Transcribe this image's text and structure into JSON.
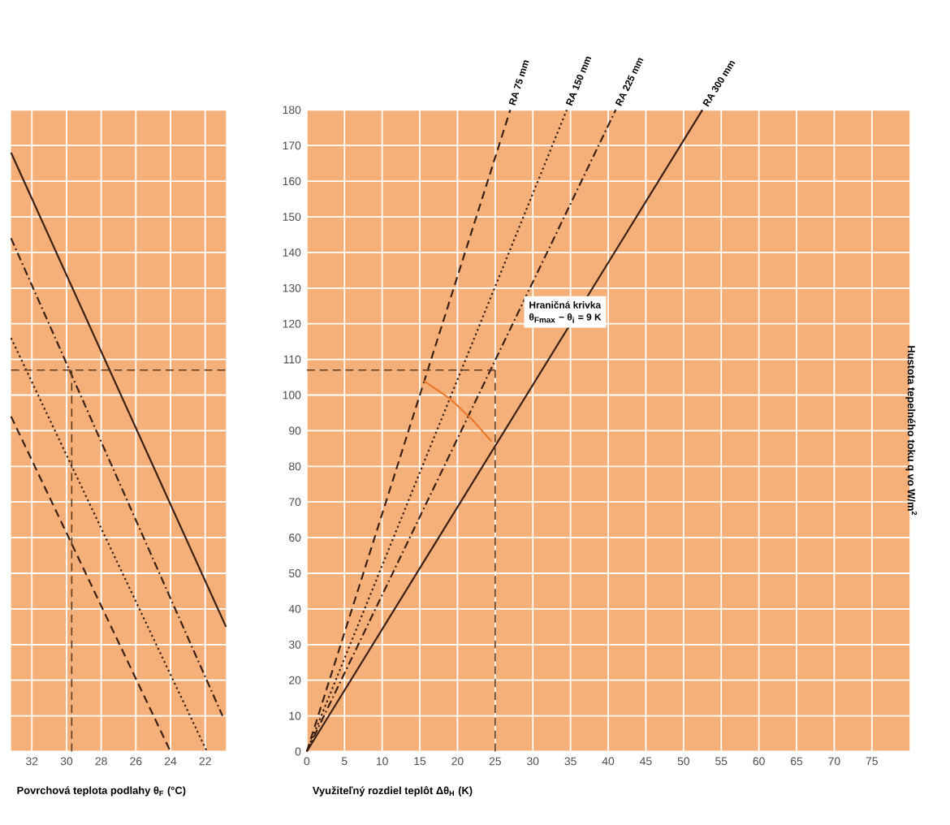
{
  "chart_data": [
    {
      "type": "line",
      "xlabel": "Povrchová teplota podlahy θ$_{F}$ (°C)",
      "xlim": [
        33.2,
        20.8
      ],
      "ylim": [
        0,
        180
      ],
      "xticks": [
        32,
        30,
        28,
        26,
        24,
        22
      ],
      "yticks": [
        0,
        10,
        20,
        30,
        40,
        50,
        60,
        70,
        80,
        90,
        100,
        110,
        120,
        130,
        140,
        150,
        160,
        170,
        180
      ],
      "tick_labels": "x",
      "grid": true,
      "marker": "none",
      "series": [
        {
          "color": "#3a1f14",
          "line_style": "solid",
          "x": [
            33.2,
            20.8
          ],
          "values": [
            168,
            35
          ]
        },
        {
          "color": "#3a1f14",
          "line_style": "dashdot",
          "x": [
            33.2,
            21
          ],
          "values": [
            144,
            10
          ]
        },
        {
          "color": "#3a1f14",
          "line_style": "dotted",
          "x": [
            33.2,
            21.9
          ],
          "values": [
            116,
            0
          ]
        },
        {
          "color": "#3a1f14",
          "line_style": "dashed",
          "x": [
            33.2,
            24
          ],
          "values": [
            94,
            0
          ]
        }
      ],
      "ref_lines": [
        {
          "axis": "x",
          "value": 29.7,
          "color": "#5a3a20",
          "line_style": "dashed"
        },
        {
          "axis": "y",
          "value": 107,
          "color": "#5a3a20",
          "line_style": "dashed"
        }
      ]
    },
    {
      "type": "line",
      "xlabel": "Využiteľný rozdiel teplôt Δθ$_{H}$ (K)",
      "ylabel": "Hustota tepelného toku q vo W/m$^{2}$",
      "xlim": [
        0,
        80
      ],
      "ylim": [
        0,
        180
      ],
      "xticks": [
        0,
        5,
        10,
        15,
        20,
        25,
        30,
        35,
        40,
        45,
        50,
        55,
        60,
        65,
        70,
        75
      ],
      "yticks": [
        0,
        10,
        20,
        30,
        40,
        50,
        60,
        70,
        80,
        90,
        100,
        110,
        120,
        130,
        140,
        150,
        160,
        170,
        180
      ],
      "grid": true,
      "marker": "none",
      "annotations": [
        "Hraničná krivka",
        "θ$_{Fmax}$ − θ$_{i}$ = 9 K"
      ],
      "series": [
        {
          "name": "RA 75 mm",
          "color": "#3a1f14",
          "line_style": "dashed",
          "x": [
            0,
            27
          ],
          "values": [
            0,
            180
          ]
        },
        {
          "name": "RA 150 mm",
          "color": "#3a1f14",
          "line_style": "dotted",
          "x": [
            0,
            34.5
          ],
          "values": [
            0,
            180
          ]
        },
        {
          "name": "RA 225 mm",
          "color": "#3a1f14",
          "line_style": "dashdot",
          "x": [
            0,
            41
          ],
          "values": [
            0,
            180
          ]
        },
        {
          "name": "RA 300 mm",
          "color": "#3a1f14",
          "line_style": "solid",
          "x": [
            0,
            52.5
          ],
          "values": [
            0,
            180
          ]
        },
        {
          "color": "#e8792c",
          "line_style": "solid",
          "x": [
            15.5,
            19,
            22,
            24.5
          ],
          "values": [
            104,
            99,
            93,
            87
          ]
        }
      ],
      "ref_lines": [
        {
          "axis": "x",
          "value": 25,
          "color": "#5a3a20",
          "line_style": "dashed"
        },
        {
          "axis": "y",
          "value": 107,
          "color": "#5a3a20",
          "line_style": "dashed"
        }
      ]
    }
  ]
}
